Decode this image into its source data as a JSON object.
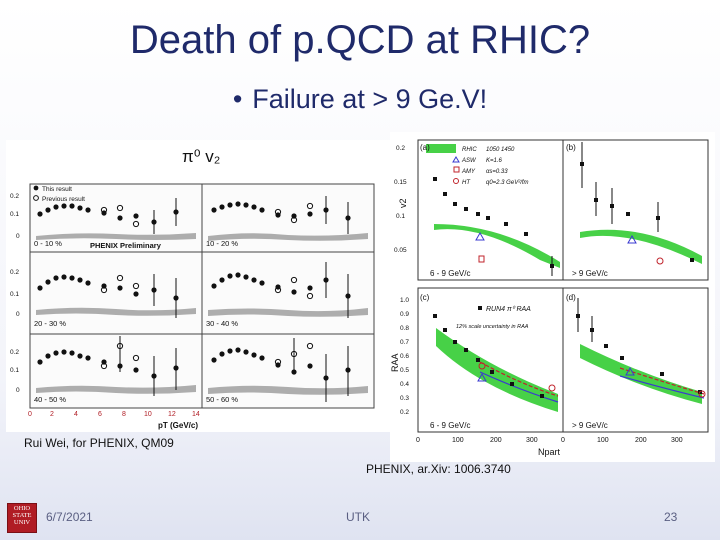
{
  "slide": {
    "title": "Death of p.QCD at RHIC?",
    "bullet": "Failure at > 9 Ge.V!",
    "bullet_marker": "•",
    "captions": {
      "left_credit": "Rui Wei, for PHENIX, QM09",
      "right_credit": "PHENIX, ar.Xiv: 1006.3740"
    },
    "footer": {
      "date": "6/7/2021",
      "center": "UTK",
      "page": "23"
    },
    "logo_text": [
      "OHIO",
      "STATE",
      "UNIV"
    ]
  },
  "left_figure": {
    "heading": "π⁰ v₂",
    "legend": [
      "This result",
      "Previous result"
    ],
    "panel_labels": [
      "0 - 10 %",
      "10 - 20 %",
      "20 - 30 %",
      "30 - 40 %",
      "40 - 50 %",
      "50 - 60 %"
    ],
    "preliminary_label": "PHENIX Preliminary",
    "y_ticks": [
      "0.2",
      "0.1",
      "0"
    ],
    "x_ticks": [
      "0",
      "2",
      "4",
      "6",
      "8",
      "10",
      "12",
      "14"
    ],
    "x_label": "pT (GeV/c)"
  },
  "right_figure": {
    "panel_labels": [
      "(a)",
      "(b)",
      "(c)",
      "(d)"
    ],
    "v2_y_ticks": [
      "0.2",
      "0.15",
      "0.1",
      "0.05"
    ],
    "v2_y_label": "v2",
    "raa_y_ticks": [
      "1.0",
      "0.9",
      "0.8",
      "0.7",
      "0.6",
      "0.5",
      "0.4",
      "0.3",
      "0.2"
    ],
    "raa_y_label": "RAA",
    "x_ticks": [
      "0",
      "100",
      "200",
      "300"
    ],
    "x_label": "Npart",
    "range_labels": [
      "6 - 9 GeV/c",
      "> 9 GeV/c",
      "6 - 9 GeV/c",
      "> 9 GeV/c"
    ],
    "legend_a": [
      "RHIC",
      "ASW",
      "AMY",
      "HT"
    ],
    "legend_a_notes": [
      "1050 1450",
      "K=1.6",
      "αs=0.33",
      "q0=2.3 GeV²/fm"
    ],
    "legend_c": "RUN4 π⁰ RAA",
    "legend_c_note": "12% scale uncertainty in RAA"
  }
}
